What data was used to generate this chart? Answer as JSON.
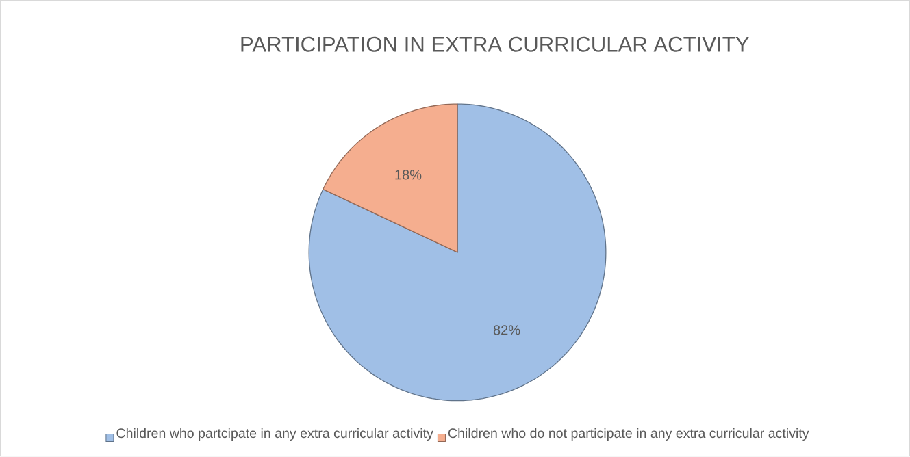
{
  "chart_data": {
    "type": "pie",
    "title": "PARTICIPATION IN EXTRA CURRICULAR ACTIVITY",
    "categories": [
      "Children who partcipate in any extra curricular activity",
      "Children who do not participate in any extra curricular activity"
    ],
    "values": [
      82,
      18
    ],
    "colors": [
      "#a0bfe6",
      "#f5ae8f"
    ],
    "value_labels": [
      "82%",
      "18%"
    ],
    "legend": "bottom"
  }
}
